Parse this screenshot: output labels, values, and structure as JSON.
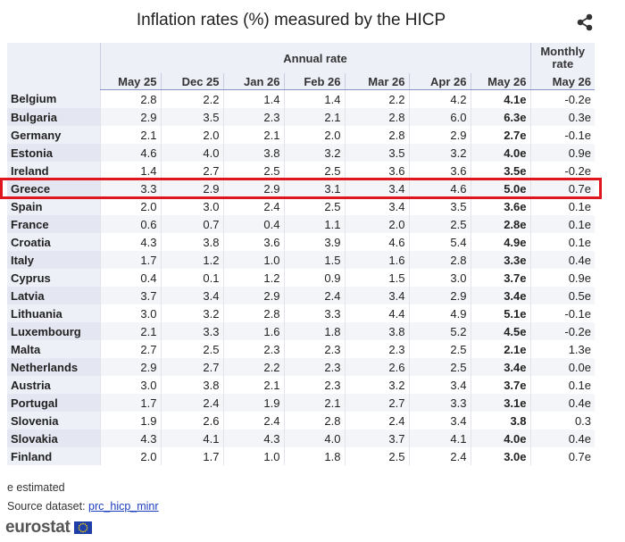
{
  "title": "Inflation rates (%) measured by the HICP",
  "table": {
    "group_headers": [
      "Annual rate",
      "Monthly rate"
    ],
    "columns": [
      "May 25",
      "Dec 25",
      "Jan 26",
      "Feb 26",
      "Mar 26",
      "Apr 26",
      "May 26",
      "May 26"
    ],
    "rows": [
      [
        "Belgium",
        "2.8",
        "2.2",
        "1.4",
        "1.4",
        "2.2",
        "4.2",
        "4.1e",
        "-0.2e"
      ],
      [
        "Bulgaria",
        "2.9",
        "3.5",
        "2.3",
        "2.1",
        "2.8",
        "6.0",
        "6.3e",
        "0.3e"
      ],
      [
        "Germany",
        "2.1",
        "2.0",
        "2.1",
        "2.0",
        "2.8",
        "2.9",
        "2.7e",
        "-0.1e"
      ],
      [
        "Estonia",
        "4.6",
        "4.0",
        "3.8",
        "3.2",
        "3.5",
        "3.2",
        "4.0e",
        "0.9e"
      ],
      [
        "Ireland",
        "1.4",
        "2.7",
        "2.5",
        "2.5",
        "3.6",
        "3.6",
        "3.5e",
        "-0.2e"
      ],
      [
        "Greece",
        "3.3",
        "2.9",
        "2.9",
        "3.1",
        "3.4",
        "4.6",
        "5.0e",
        "0.7e"
      ],
      [
        "Spain",
        "2.0",
        "3.0",
        "2.4",
        "2.5",
        "3.4",
        "3.5",
        "3.6e",
        "0.1e"
      ],
      [
        "France",
        "0.6",
        "0.7",
        "0.4",
        "1.1",
        "2.0",
        "2.5",
        "2.8e",
        "0.1e"
      ],
      [
        "Croatia",
        "4.3",
        "3.8",
        "3.6",
        "3.9",
        "4.6",
        "5.4",
        "4.9e",
        "0.1e"
      ],
      [
        "Italy",
        "1.7",
        "1.2",
        "1.0",
        "1.5",
        "1.6",
        "2.8",
        "3.3e",
        "0.4e"
      ],
      [
        "Cyprus",
        "0.4",
        "0.1",
        "1.2",
        "0.9",
        "1.5",
        "3.0",
        "3.7e",
        "0.9e"
      ],
      [
        "Latvia",
        "3.7",
        "3.4",
        "2.9",
        "2.4",
        "3.4",
        "2.9",
        "3.4e",
        "0.5e"
      ],
      [
        "Lithuania",
        "3.0",
        "3.2",
        "2.8",
        "3.3",
        "4.4",
        "4.9",
        "5.1e",
        "-0.1e"
      ],
      [
        "Luxembourg",
        "2.1",
        "3.3",
        "1.6",
        "1.8",
        "3.8",
        "5.2",
        "4.5e",
        "-0.2e"
      ],
      [
        "Malta",
        "2.7",
        "2.5",
        "2.3",
        "2.3",
        "2.3",
        "2.5",
        "2.1e",
        "1.3e"
      ],
      [
        "Netherlands",
        "2.9",
        "2.7",
        "2.2",
        "2.3",
        "2.6",
        "2.5",
        "3.4e",
        "0.0e"
      ],
      [
        "Austria",
        "3.0",
        "3.8",
        "2.1",
        "2.3",
        "3.2",
        "3.4",
        "3.7e",
        "0.1e"
      ],
      [
        "Portugal",
        "1.7",
        "2.4",
        "1.9",
        "2.1",
        "2.7",
        "3.3",
        "3.1e",
        "0.4e"
      ],
      [
        "Slovenia",
        "1.9",
        "2.6",
        "2.4",
        "2.8",
        "2.4",
        "3.4",
        "3.8",
        "0.3"
      ],
      [
        "Slovakia",
        "4.3",
        "4.1",
        "4.3",
        "4.0",
        "3.7",
        "4.1",
        "4.0e",
        "0.4e"
      ],
      [
        "Finland",
        "2.0",
        "1.7",
        "1.0",
        "1.8",
        "2.5",
        "2.4",
        "3.0e",
        "0.7e"
      ]
    ]
  },
  "footer": {
    "note": "e estimated",
    "source_label": "Source dataset:",
    "source_link": "prc_hicp_minr",
    "logo": "eurostat"
  }
}
